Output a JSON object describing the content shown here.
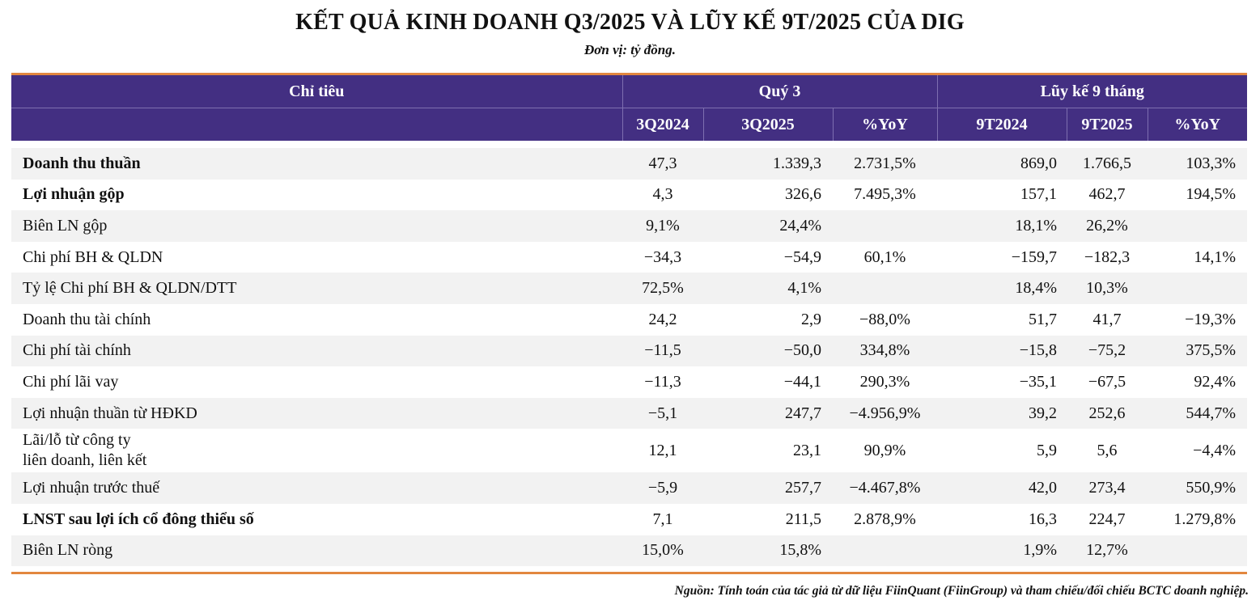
{
  "title": "KẾT QUẢ KINH DOANH Q3/2025 VÀ LŨY KẾ 9T/2025 CỦA DIG",
  "unit": "Đơn vị: tỷ đồng.",
  "header": {
    "indicator": "Chỉ tiêu",
    "q3_group": "Quý 3",
    "ytd_group": "Lũy kế 9 tháng",
    "cols": [
      "3Q2024",
      "3Q2025",
      "%YoY",
      "9T2024",
      "9T2025",
      "%YoY"
    ]
  },
  "rows": [
    {
      "label": "Doanh thu thuần",
      "bold": true,
      "values": [
        "47,3",
        "1.339,3",
        "2.731,5%",
        "869,0",
        "1.766,5",
        "103,3%"
      ]
    },
    {
      "label": "Lợi nhuận gộp",
      "bold": true,
      "values": [
        "4,3",
        "326,6",
        "7.495,3%",
        "157,1",
        "462,7",
        "194,5%"
      ]
    },
    {
      "label": "Biên LN gộp",
      "bold": false,
      "values": [
        "9,1%",
        "24,4%",
        "",
        "18,1%",
        "26,2%",
        ""
      ]
    },
    {
      "label": "Chi phí BH & QLDN",
      "bold": false,
      "values": [
        "−34,3",
        "−54,9",
        "60,1%",
        "−159,7",
        "−182,3",
        "14,1%"
      ]
    },
    {
      "label": "Tỷ lệ Chi phí BH & QLDN/DTT",
      "bold": false,
      "values": [
        "72,5%",
        "4,1%",
        "",
        "18,4%",
        "10,3%",
        ""
      ]
    },
    {
      "label": "Doanh thu tài chính",
      "bold": false,
      "values": [
        "24,2",
        "2,9",
        "−88,0%",
        "51,7",
        "41,7",
        "−19,3%"
      ]
    },
    {
      "label": "Chi phí tài chính",
      "bold": false,
      "values": [
        "−11,5",
        "−50,0",
        "334,8%",
        "−15,8",
        "−75,2",
        "375,5%"
      ]
    },
    {
      "label": "Chi phí lãi vay",
      "bold": false,
      "values": [
        "−11,3",
        "−44,1",
        "290,3%",
        "−35,1",
        "−67,5",
        "92,4%"
      ]
    },
    {
      "label": "Lợi nhuận thuần từ HĐKD",
      "bold": false,
      "values": [
        "−5,1",
        "247,7",
        "−4.956,9%",
        "39,2",
        "252,6",
        "544,7%"
      ]
    },
    {
      "label": "Lãi/lỗ từ công ty\nliên doanh, liên kết",
      "bold": false,
      "values": [
        "12,1",
        "23,1",
        "90,9%",
        "5,9",
        "5,6",
        "−4,4%"
      ]
    },
    {
      "label": "Lợi nhuận trước thuế",
      "bold": false,
      "values": [
        "−5,9",
        "257,7",
        "−4.467,8%",
        "42,0",
        "273,4",
        "550,9%"
      ]
    },
    {
      "label": "LNST sau lợi ích cổ đông thiểu số",
      "bold": true,
      "values": [
        "7,1",
        "211,5",
        "2.878,9%",
        "16,3",
        "224,7",
        "1.279,8%"
      ]
    },
    {
      "label": "Biên LN ròng",
      "bold": false,
      "values": [
        "15,0%",
        "15,8%",
        "",
        "1,9%",
        "12,7%",
        ""
      ]
    }
  ],
  "source": "Nguồn: Tính toán của tác giả từ dữ liệu FiinQuant (FiinGroup) và tham chiếu/đối chiếu BCTC doanh nghiệp.",
  "colors": {
    "header_bg": "#432f82",
    "accent_line": "#e2873f",
    "stripe": "#f2f2f2"
  }
}
